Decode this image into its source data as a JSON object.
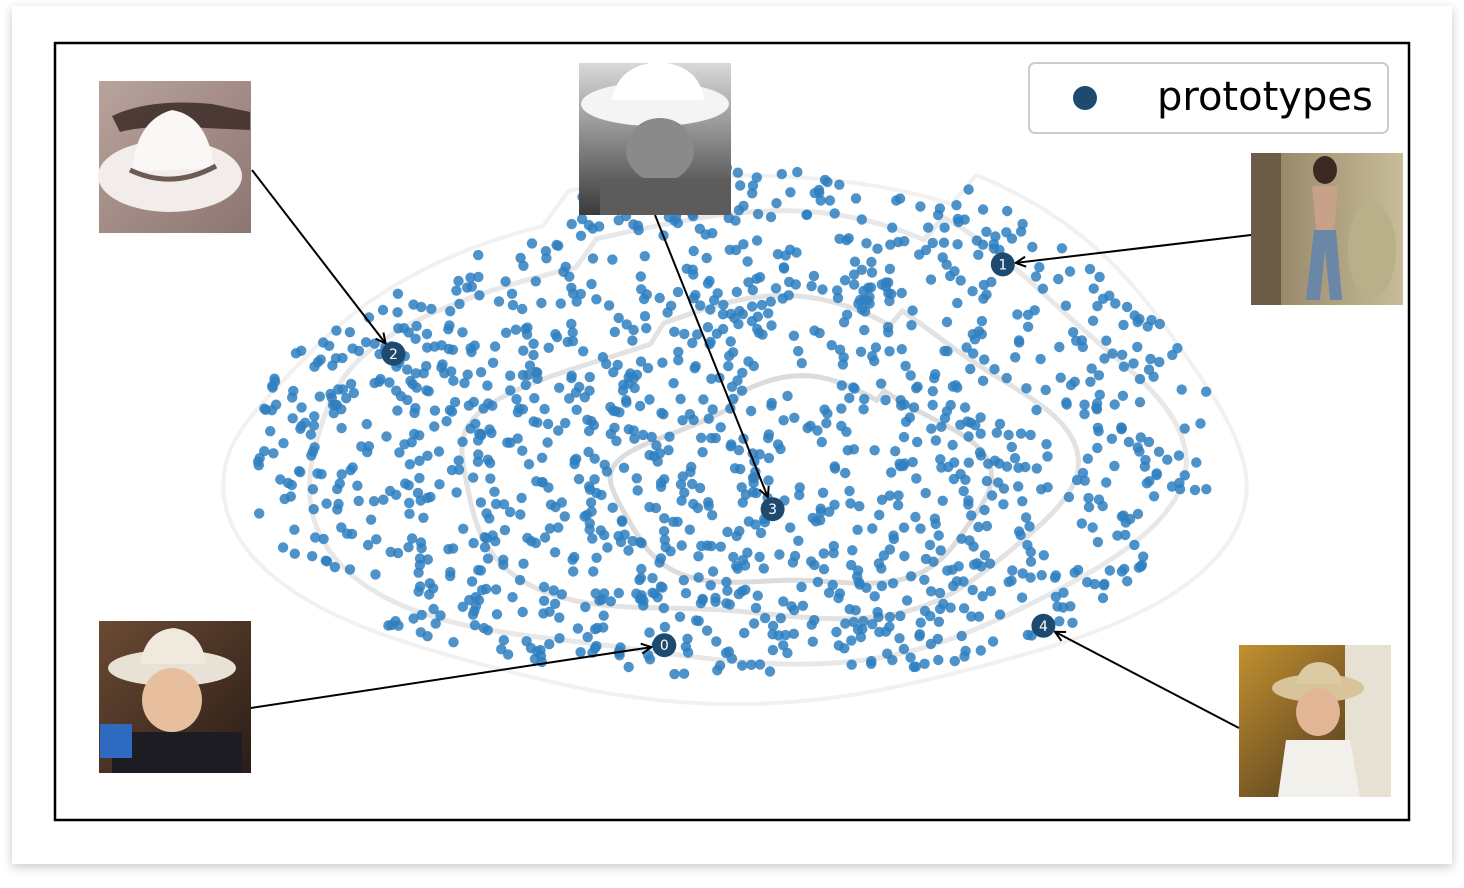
{
  "chart_data": {
    "type": "scatter",
    "title": "",
    "xlabel": "",
    "ylabel": "",
    "grid": false,
    "axes_ticks": false,
    "legend": {
      "placement": "top-right",
      "entries": [
        "prototypes"
      ]
    },
    "colors": {
      "points": "#2f7fc1",
      "prototypes": "#1e4a70",
      "contours": "#d6d6d6",
      "frame": "#000000",
      "arrows": "#000000"
    },
    "series": [
      {
        "name": "prototypes",
        "points": [
          {
            "label": "0",
            "x": 0.45,
            "y": -0.55
          },
          {
            "label": "1",
            "x": 0.7,
            "y": 0.43
          },
          {
            "label": "2",
            "x": 0.25,
            "y": 0.2
          },
          {
            "label": "3",
            "x": 0.53,
            "y": -0.2
          },
          {
            "label": "4",
            "x": 0.73,
            "y": -0.5
          }
        ]
      }
    ],
    "point_cloud": {
      "count": 1400,
      "seed": 7
    },
    "thumbnails": [
      {
        "prototype": "2",
        "subject": "white-cowboy-hat"
      },
      {
        "prototype": "3",
        "subject": "boy-in-cowboy-hat-grayscale"
      },
      {
        "prototype": "1",
        "subject": "woman-posing-barn"
      },
      {
        "prototype": "0",
        "subject": "child-in-cowboy-hat"
      },
      {
        "prototype": "4",
        "subject": "woman-in-cowboy-hat"
      }
    ]
  }
}
